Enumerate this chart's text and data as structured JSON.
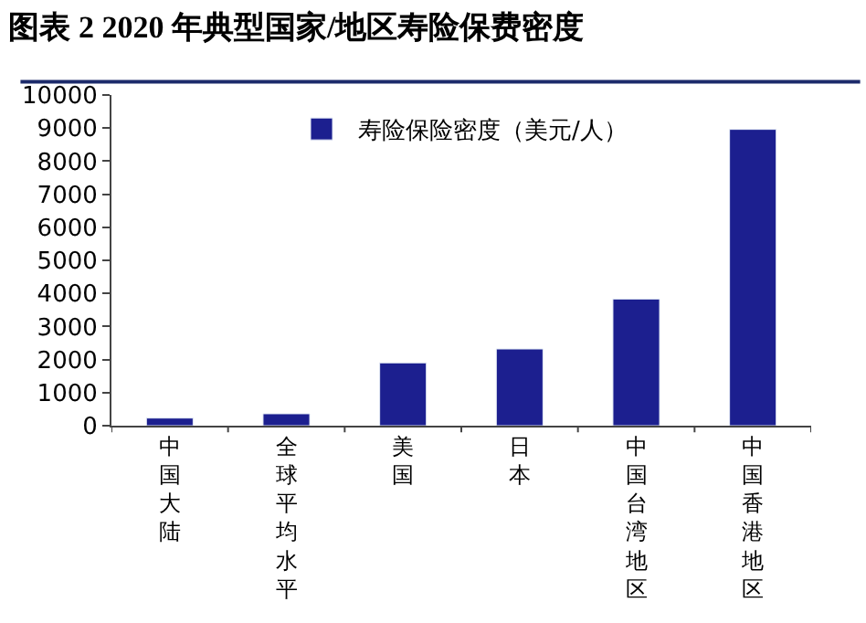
{
  "chart_data": {
    "type": "bar",
    "title": "图表 2 2020 年典型国家/地区寿险保费密度",
    "categories": [
      "中国大陆",
      "全球平均水平",
      "美国",
      "日本",
      "中国台湾地区",
      "中国香港地区"
    ],
    "series": [
      {
        "name": "寿险保险密度（美元/人）",
        "color": "#1c1f8f",
        "values": [
          230,
          360,
          1900,
          2320,
          3830,
          8960
        ]
      }
    ],
    "ylim": [
      0,
      10000
    ],
    "yticks": [
      0,
      1000,
      2000,
      3000,
      4000,
      5000,
      6000,
      7000,
      8000,
      9000,
      10000
    ],
    "legend": "top"
  }
}
